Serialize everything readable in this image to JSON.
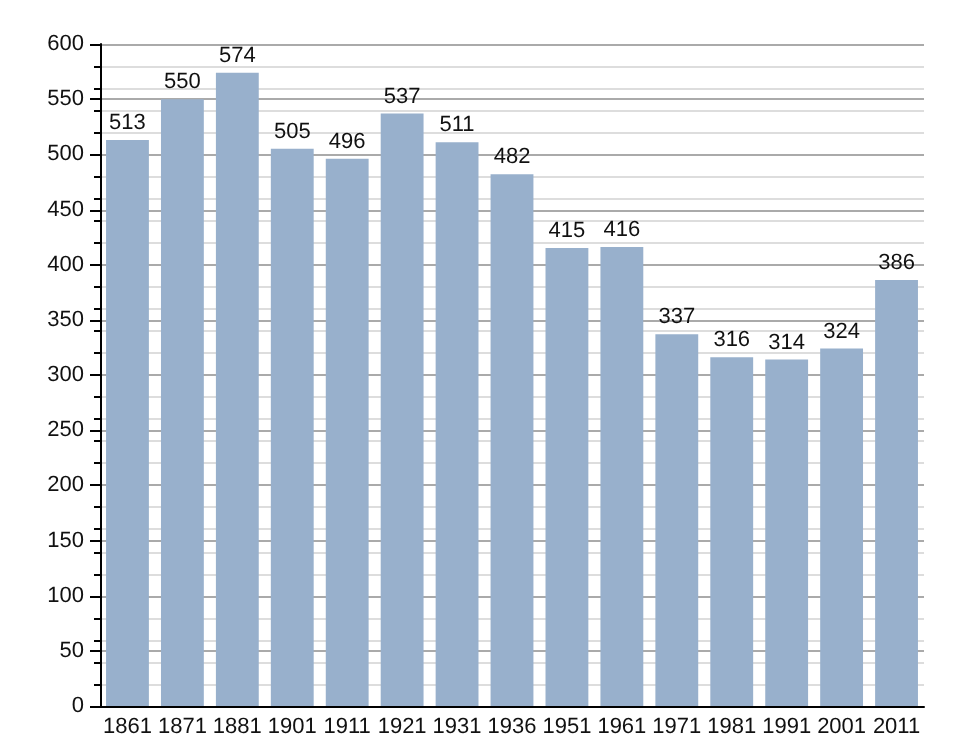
{
  "chart_data": {
    "type": "bar",
    "categories": [
      "1861",
      "1871",
      "1881",
      "1901",
      "1911",
      "1921",
      "1931",
      "1936",
      "1951",
      "1961",
      "1971",
      "1981",
      "1991",
      "2001",
      "2011"
    ],
    "values": [
      513,
      550,
      574,
      505,
      496,
      537,
      511,
      482,
      415,
      416,
      337,
      316,
      314,
      324,
      386
    ],
    "color": "#98b0cc",
    "ylim": [
      0,
      600
    ],
    "yticks": [
      0,
      50,
      100,
      150,
      200,
      250,
      300,
      350,
      400,
      450,
      500,
      550,
      600
    ],
    "grid": "y",
    "data_labels": true
  }
}
